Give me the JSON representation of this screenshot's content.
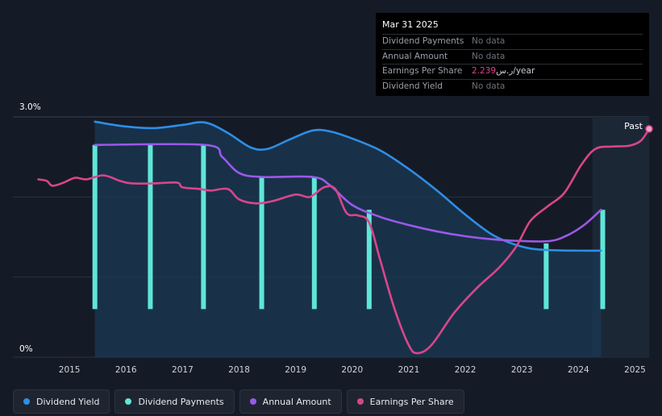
{
  "tooltip": {
    "date": "Mar 31 2025",
    "rows": [
      {
        "label": "Dividend Payments",
        "value": "No data"
      },
      {
        "label": "Annual Amount",
        "value": "No data"
      },
      {
        "label": "Earnings Per Share",
        "value": "2.239",
        "unit": "ر.س/year"
      },
      {
        "label": "Dividend Yield",
        "value": "No data"
      }
    ]
  },
  "legend": [
    {
      "label": "Dividend Yield",
      "color": "#2e8ee6"
    },
    {
      "label": "Dividend Payments",
      "color": "#5ee6d8"
    },
    {
      "label": "Annual Amount",
      "color": "#9b59e6"
    },
    {
      "label": "Earnings Per Share",
      "color": "#d9468a"
    }
  ],
  "chart_data": {
    "type": "line",
    "ylabels": {
      "top": "3.0%",
      "bottom": "0%"
    },
    "ylim": [
      0,
      3.0
    ],
    "xlim": [
      2014.0,
      2025.25
    ],
    "x_ticks": [
      "2015",
      "2016",
      "2017",
      "2018",
      "2019",
      "2020",
      "2021",
      "2022",
      "2023",
      "2024",
      "2025"
    ],
    "past_label": "Past",
    "series": [
      {
        "name": "Dividend Yield",
        "color": "#2e8ee6",
        "unit": "%",
        "points": [
          [
            2015.45,
            2.94
          ],
          [
            2016.0,
            2.88
          ],
          [
            2016.5,
            2.86
          ],
          [
            2017.0,
            2.9
          ],
          [
            2017.4,
            2.93
          ],
          [
            2017.8,
            2.8
          ],
          [
            2018.2,
            2.62
          ],
          [
            2018.5,
            2.6
          ],
          [
            2018.9,
            2.72
          ],
          [
            2019.3,
            2.83
          ],
          [
            2019.6,
            2.82
          ],
          [
            2020.0,
            2.73
          ],
          [
            2020.5,
            2.58
          ],
          [
            2021.0,
            2.35
          ],
          [
            2021.5,
            2.08
          ],
          [
            2022.0,
            1.78
          ],
          [
            2022.5,
            1.52
          ],
          [
            2023.0,
            1.38
          ],
          [
            2023.4,
            1.34
          ],
          [
            2024.0,
            1.33
          ],
          [
            2024.4,
            1.33
          ]
        ]
      },
      {
        "name": "Annual Amount",
        "color": "#9b59e6",
        "unit": "%",
        "points": [
          [
            2015.45,
            2.65
          ],
          [
            2017.4,
            2.65
          ],
          [
            2017.7,
            2.5
          ],
          [
            2018.0,
            2.3
          ],
          [
            2018.4,
            2.25
          ],
          [
            2019.3,
            2.25
          ],
          [
            2019.6,
            2.15
          ],
          [
            2020.0,
            1.9
          ],
          [
            2020.5,
            1.75
          ],
          [
            2021.0,
            1.65
          ],
          [
            2021.5,
            1.57
          ],
          [
            2022.0,
            1.51
          ],
          [
            2022.5,
            1.47
          ],
          [
            2023.0,
            1.45
          ],
          [
            2023.5,
            1.45
          ],
          [
            2023.8,
            1.52
          ],
          [
            2024.1,
            1.65
          ],
          [
            2024.4,
            1.84
          ]
        ]
      },
      {
        "name": "Earnings Per Share",
        "color": "#d9468a",
        "unit": "%",
        "points": [
          [
            2014.45,
            2.22
          ],
          [
            2014.6,
            2.2
          ],
          [
            2014.7,
            2.14
          ],
          [
            2014.9,
            2.18
          ],
          [
            2015.1,
            2.24
          ],
          [
            2015.3,
            2.22
          ],
          [
            2015.6,
            2.27
          ],
          [
            2015.9,
            2.2
          ],
          [
            2016.1,
            2.17
          ],
          [
            2016.5,
            2.17
          ],
          [
            2016.9,
            2.18
          ],
          [
            2017.0,
            2.12
          ],
          [
            2017.3,
            2.1
          ],
          [
            2017.5,
            2.08
          ],
          [
            2017.8,
            2.1
          ],
          [
            2018.0,
            1.97
          ],
          [
            2018.3,
            1.92
          ],
          [
            2018.6,
            1.95
          ],
          [
            2019.0,
            2.03
          ],
          [
            2019.25,
            2.0
          ],
          [
            2019.5,
            2.12
          ],
          [
            2019.7,
            2.1
          ],
          [
            2019.9,
            1.8
          ],
          [
            2020.1,
            1.77
          ],
          [
            2020.3,
            1.68
          ],
          [
            2020.5,
            1.2
          ],
          [
            2020.75,
            0.6
          ],
          [
            2021.0,
            0.15
          ],
          [
            2021.15,
            0.05
          ],
          [
            2021.4,
            0.15
          ],
          [
            2021.8,
            0.55
          ],
          [
            2022.2,
            0.86
          ],
          [
            2022.6,
            1.12
          ],
          [
            2022.9,
            1.38
          ],
          [
            2023.15,
            1.7
          ],
          [
            2023.45,
            1.88
          ],
          [
            2023.75,
            2.05
          ],
          [
            2024.05,
            2.4
          ],
          [
            2024.3,
            2.6
          ],
          [
            2024.6,
            2.63
          ],
          [
            2024.9,
            2.64
          ],
          [
            2025.1,
            2.7
          ],
          [
            2025.25,
            2.85
          ]
        ]
      }
    ],
    "dividend_payments": {
      "name": "Dividend Payments",
      "color": "#5ee6d8",
      "unit": "%",
      "bars": [
        [
          2015.45,
          0.6,
          2.65
        ],
        [
          2016.43,
          0.6,
          2.65
        ],
        [
          2017.37,
          0.6,
          2.65
        ],
        [
          2018.4,
          0.6,
          2.25
        ],
        [
          2019.33,
          0.6,
          2.25
        ],
        [
          2020.3,
          0.6,
          1.84
        ],
        [
          2023.43,
          0.6,
          1.42
        ],
        [
          2024.43,
          0.6,
          1.84
        ]
      ]
    },
    "forecast_start": 2024.25
  }
}
